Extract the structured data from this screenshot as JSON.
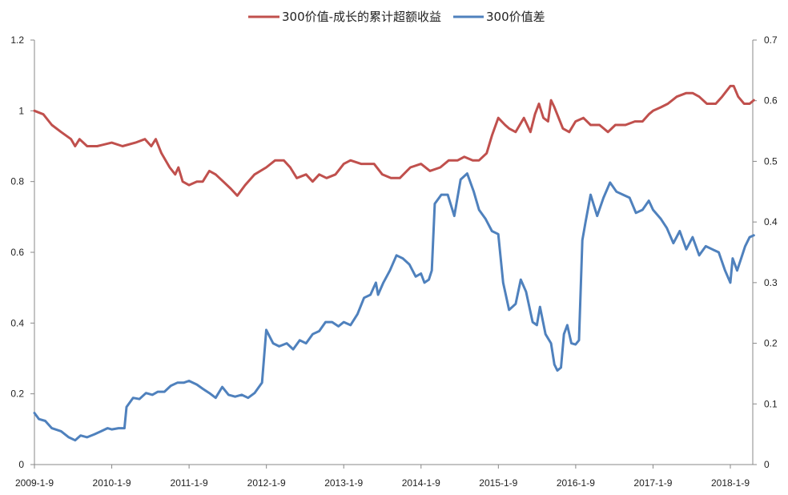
{
  "chart_data": {
    "type": "line",
    "title": "",
    "legend_position": "top-center",
    "grid": false,
    "x_ticks": [
      "2009-1-9",
      "2010-1-9",
      "2011-1-9",
      "2012-1-9",
      "2013-1-9",
      "2014-1-9",
      "2015-1-9",
      "2016-1-9",
      "2017-1-9",
      "2018-1-9"
    ],
    "x_range": [
      "2009-01-09",
      "2018-04-30"
    ],
    "left_axis": {
      "range": [
        0,
        1.2
      ],
      "ticks": [
        "0",
        "0.2",
        "0.4",
        "0.6",
        "0.8",
        "1",
        "1.2"
      ]
    },
    "right_axis": {
      "range": [
        0,
        0.7
      ],
      "ticks": [
        "0",
        "0.1",
        "0.2",
        "0.3",
        "0.4",
        "0.5",
        "0.6",
        "0.7"
      ]
    },
    "series": [
      {
        "name": "300价值-成长的累计超额收益",
        "axis": "left",
        "color": "#C0504D",
        "points": [
          [
            "2009-01-09",
            1.0
          ],
          [
            "2009-02-20",
            0.99
          ],
          [
            "2009-04-01",
            0.96
          ],
          [
            "2009-05-15",
            0.94
          ],
          [
            "2009-07-01",
            0.92
          ],
          [
            "2009-07-20",
            0.9
          ],
          [
            "2009-08-10",
            0.92
          ],
          [
            "2009-09-15",
            0.9
          ],
          [
            "2009-11-01",
            0.9
          ],
          [
            "2010-01-09",
            0.91
          ],
          [
            "2010-03-01",
            0.9
          ],
          [
            "2010-05-01",
            0.91
          ],
          [
            "2010-06-15",
            0.92
          ],
          [
            "2010-07-15",
            0.9
          ],
          [
            "2010-08-05",
            0.92
          ],
          [
            "2010-09-01",
            0.88
          ],
          [
            "2010-10-10",
            0.84
          ],
          [
            "2010-11-05",
            0.82
          ],
          [
            "2010-11-20",
            0.84
          ],
          [
            "2010-12-10",
            0.8
          ],
          [
            "2011-01-09",
            0.79
          ],
          [
            "2011-02-15",
            0.8
          ],
          [
            "2011-03-15",
            0.8
          ],
          [
            "2011-04-15",
            0.83
          ],
          [
            "2011-05-15",
            0.82
          ],
          [
            "2011-06-20",
            0.8
          ],
          [
            "2011-07-25",
            0.78
          ],
          [
            "2011-08-25",
            0.76
          ],
          [
            "2011-10-01",
            0.79
          ],
          [
            "2011-11-15",
            0.82
          ],
          [
            "2012-01-09",
            0.84
          ],
          [
            "2012-02-20",
            0.86
          ],
          [
            "2012-04-01",
            0.86
          ],
          [
            "2012-05-01",
            0.84
          ],
          [
            "2012-06-01",
            0.81
          ],
          [
            "2012-07-15",
            0.82
          ],
          [
            "2012-08-15",
            0.8
          ],
          [
            "2012-09-15",
            0.82
          ],
          [
            "2012-10-20",
            0.81
          ],
          [
            "2012-12-01",
            0.82
          ],
          [
            "2013-01-09",
            0.85
          ],
          [
            "2013-02-10",
            0.86
          ],
          [
            "2013-04-01",
            0.85
          ],
          [
            "2013-06-01",
            0.85
          ],
          [
            "2013-07-10",
            0.82
          ],
          [
            "2013-08-20",
            0.81
          ],
          [
            "2013-10-01",
            0.81
          ],
          [
            "2013-11-20",
            0.84
          ],
          [
            "2014-01-09",
            0.85
          ],
          [
            "2014-02-20",
            0.83
          ],
          [
            "2014-04-10",
            0.84
          ],
          [
            "2014-05-20",
            0.86
          ],
          [
            "2014-07-01",
            0.86
          ],
          [
            "2014-08-01",
            0.87
          ],
          [
            "2014-09-10",
            0.86
          ],
          [
            "2014-10-10",
            0.86
          ],
          [
            "2014-11-15",
            0.88
          ],
          [
            "2014-12-10",
            0.93
          ],
          [
            "2015-01-09",
            0.98
          ],
          [
            "2015-02-10",
            0.96
          ],
          [
            "2015-03-01",
            0.95
          ],
          [
            "2015-04-01",
            0.94
          ],
          [
            "2015-05-10",
            0.98
          ],
          [
            "2015-06-10",
            0.94
          ],
          [
            "2015-07-01",
            0.99
          ],
          [
            "2015-07-20",
            1.02
          ],
          [
            "2015-08-10",
            0.98
          ],
          [
            "2015-09-01",
            0.97
          ],
          [
            "2015-09-15",
            1.03
          ],
          [
            "2015-10-01",
            1.01
          ],
          [
            "2015-11-10",
            0.95
          ],
          [
            "2015-12-10",
            0.94
          ],
          [
            "2016-01-09",
            0.97
          ],
          [
            "2016-02-15",
            0.98
          ],
          [
            "2016-03-20",
            0.96
          ],
          [
            "2016-05-01",
            0.96
          ],
          [
            "2016-06-10",
            0.94
          ],
          [
            "2016-07-15",
            0.96
          ],
          [
            "2016-09-01",
            0.96
          ],
          [
            "2016-10-15",
            0.97
          ],
          [
            "2016-11-20",
            0.97
          ],
          [
            "2016-12-20",
            0.99
          ],
          [
            "2017-01-09",
            1.0
          ],
          [
            "2017-02-15",
            1.01
          ],
          [
            "2017-03-20",
            1.02
          ],
          [
            "2017-05-01",
            1.04
          ],
          [
            "2017-06-15",
            1.05
          ],
          [
            "2017-07-15",
            1.05
          ],
          [
            "2017-08-15",
            1.04
          ],
          [
            "2017-09-20",
            1.02
          ],
          [
            "2017-11-01",
            1.02
          ],
          [
            "2017-12-01",
            1.04
          ],
          [
            "2018-01-09",
            1.07
          ],
          [
            "2018-01-25",
            1.07
          ],
          [
            "2018-02-15",
            1.04
          ],
          [
            "2018-03-15",
            1.02
          ],
          [
            "2018-04-10",
            1.02
          ],
          [
            "2018-04-30",
            1.03
          ]
        ]
      },
      {
        "name": "300价值差",
        "axis": "right",
        "color": "#4F81BD",
        "points": [
          [
            "2009-01-09",
            0.085
          ],
          [
            "2009-01-30",
            0.075
          ],
          [
            "2009-03-01",
            0.072
          ],
          [
            "2009-04-01",
            0.06
          ],
          [
            "2009-05-15",
            0.055
          ],
          [
            "2009-06-20",
            0.045
          ],
          [
            "2009-07-20",
            0.04
          ],
          [
            "2009-08-15",
            0.048
          ],
          [
            "2009-09-15",
            0.045
          ],
          [
            "2009-10-20",
            0.05
          ],
          [
            "2009-11-20",
            0.055
          ],
          [
            "2009-12-20",
            0.06
          ],
          [
            "2010-01-09",
            0.058
          ],
          [
            "2010-02-10",
            0.06
          ],
          [
            "2010-03-10",
            0.06
          ],
          [
            "2010-03-20",
            0.095
          ],
          [
            "2010-04-20",
            0.11
          ],
          [
            "2010-05-20",
            0.108
          ],
          [
            "2010-06-20",
            0.118
          ],
          [
            "2010-07-20",
            0.115
          ],
          [
            "2010-08-15",
            0.12
          ],
          [
            "2010-09-15",
            0.12
          ],
          [
            "2010-10-15",
            0.13
          ],
          [
            "2010-11-15",
            0.135
          ],
          [
            "2010-12-15",
            0.135
          ],
          [
            "2011-01-09",
            0.138
          ],
          [
            "2011-02-15",
            0.132
          ],
          [
            "2011-03-15",
            0.125
          ],
          [
            "2011-04-15",
            0.118
          ],
          [
            "2011-05-15",
            0.11
          ],
          [
            "2011-06-15",
            0.128
          ],
          [
            "2011-07-15",
            0.115
          ],
          [
            "2011-08-15",
            0.112
          ],
          [
            "2011-09-15",
            0.115
          ],
          [
            "2011-10-15",
            0.11
          ],
          [
            "2011-11-15",
            0.118
          ],
          [
            "2011-12-20",
            0.135
          ],
          [
            "2012-01-09",
            0.222
          ],
          [
            "2012-02-10",
            0.2
          ],
          [
            "2012-03-10",
            0.195
          ],
          [
            "2012-04-15",
            0.2
          ],
          [
            "2012-05-15",
            0.19
          ],
          [
            "2012-06-15",
            0.205
          ],
          [
            "2012-07-15",
            0.2
          ],
          [
            "2012-08-15",
            0.215
          ],
          [
            "2012-09-15",
            0.22
          ],
          [
            "2012-10-15",
            0.235
          ],
          [
            "2012-11-15",
            0.235
          ],
          [
            "2012-12-15",
            0.228
          ],
          [
            "2013-01-09",
            0.235
          ],
          [
            "2013-02-10",
            0.23
          ],
          [
            "2013-03-15",
            0.248
          ],
          [
            "2013-04-15",
            0.275
          ],
          [
            "2013-05-15",
            0.28
          ],
          [
            "2013-06-10",
            0.3
          ],
          [
            "2013-06-20",
            0.28
          ],
          [
            "2013-07-15",
            0.3
          ],
          [
            "2013-08-15",
            0.32
          ],
          [
            "2013-09-15",
            0.345
          ],
          [
            "2013-10-15",
            0.34
          ],
          [
            "2013-11-15",
            0.33
          ],
          [
            "2013-12-15",
            0.31
          ],
          [
            "2014-01-09",
            0.315
          ],
          [
            "2014-01-25",
            0.3
          ],
          [
            "2014-02-15",
            0.305
          ],
          [
            "2014-03-01",
            0.32
          ],
          [
            "2014-03-15",
            0.43
          ],
          [
            "2014-04-15",
            0.445
          ],
          [
            "2014-05-15",
            0.445
          ],
          [
            "2014-06-15",
            0.41
          ],
          [
            "2014-07-15",
            0.47
          ],
          [
            "2014-08-15",
            0.48
          ],
          [
            "2014-09-15",
            0.45
          ],
          [
            "2014-10-10",
            0.42
          ],
          [
            "2014-11-10",
            0.405
          ],
          [
            "2014-12-10",
            0.385
          ],
          [
            "2015-01-09",
            0.38
          ],
          [
            "2015-02-01",
            0.3
          ],
          [
            "2015-03-01",
            0.255
          ],
          [
            "2015-04-01",
            0.265
          ],
          [
            "2015-04-25",
            0.305
          ],
          [
            "2015-05-20",
            0.285
          ],
          [
            "2015-06-20",
            0.235
          ],
          [
            "2015-07-10",
            0.23
          ],
          [
            "2015-07-25",
            0.26
          ],
          [
            "2015-08-20",
            0.215
          ],
          [
            "2015-09-15",
            0.2
          ],
          [
            "2015-10-01",
            0.165
          ],
          [
            "2015-10-15",
            0.155
          ],
          [
            "2015-11-01",
            0.16
          ],
          [
            "2015-11-15",
            0.215
          ],
          [
            "2015-12-01",
            0.23
          ],
          [
            "2015-12-20",
            0.2
          ],
          [
            "2016-01-09",
            0.198
          ],
          [
            "2016-01-25",
            0.205
          ],
          [
            "2016-02-10",
            0.37
          ],
          [
            "2016-02-25",
            0.4
          ],
          [
            "2016-03-20",
            0.445
          ],
          [
            "2016-04-20",
            0.41
          ],
          [
            "2016-05-20",
            0.44
          ],
          [
            "2016-06-20",
            0.465
          ],
          [
            "2016-07-20",
            0.45
          ],
          [
            "2016-08-20",
            0.445
          ],
          [
            "2016-09-20",
            0.44
          ],
          [
            "2016-10-20",
            0.415
          ],
          [
            "2016-11-20",
            0.42
          ],
          [
            "2016-12-20",
            0.435
          ],
          [
            "2017-01-09",
            0.42
          ],
          [
            "2017-02-15",
            0.405
          ],
          [
            "2017-03-15",
            0.39
          ],
          [
            "2017-04-15",
            0.365
          ],
          [
            "2017-05-15",
            0.385
          ],
          [
            "2017-06-15",
            0.355
          ],
          [
            "2017-07-15",
            0.375
          ],
          [
            "2017-08-15",
            0.345
          ],
          [
            "2017-09-15",
            0.36
          ],
          [
            "2017-10-15",
            0.355
          ],
          [
            "2017-11-15",
            0.35
          ],
          [
            "2017-12-15",
            0.32
          ],
          [
            "2018-01-09",
            0.3
          ],
          [
            "2018-01-20",
            0.34
          ],
          [
            "2018-02-10",
            0.32
          ],
          [
            "2018-03-01",
            0.34
          ],
          [
            "2018-03-20",
            0.36
          ],
          [
            "2018-04-10",
            0.375
          ],
          [
            "2018-04-30",
            0.378
          ]
        ]
      }
    ]
  }
}
